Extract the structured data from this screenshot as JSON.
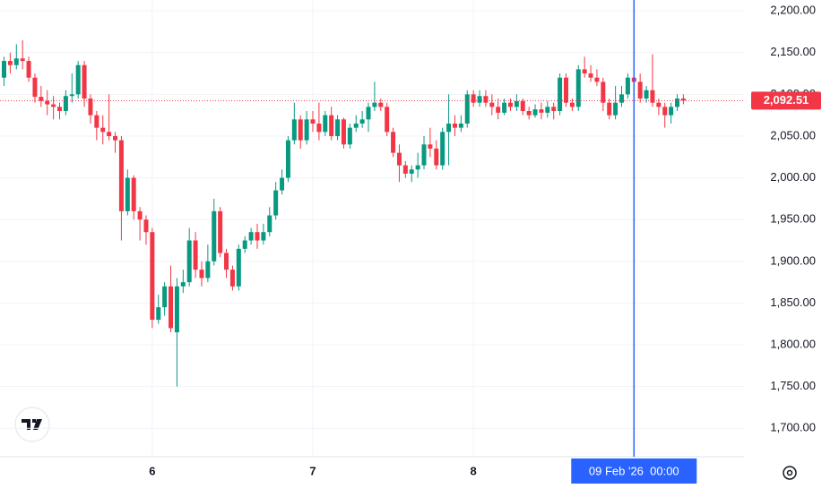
{
  "chart_data": {
    "type": "candlestick",
    "categories": [
      null,
      null,
      null,
      null,
      null,
      null,
      null,
      null,
      null,
      null,
      null,
      null,
      null,
      null,
      null,
      null,
      null,
      null,
      null,
      null,
      null,
      null,
      null,
      null,
      "6",
      null,
      null,
      null,
      null,
      null,
      null,
      null,
      null,
      null,
      null,
      null,
      null,
      null,
      null,
      null,
      null,
      null,
      null,
      null,
      null,
      null,
      null,
      null,
      null,
      null,
      "7",
      null,
      null,
      null,
      null,
      null,
      null,
      null,
      null,
      null,
      null,
      null,
      null,
      null,
      null,
      null,
      null,
      null,
      null,
      null,
      null,
      null,
      null,
      null,
      null,
      null,
      "8",
      null,
      null,
      null,
      null,
      null,
      null,
      null,
      null,
      null,
      null,
      null,
      null,
      null,
      null,
      null,
      null,
      null,
      null,
      null,
      null,
      null,
      null,
      null,
      null,
      null,
      "09 Feb '26  00:00",
      null,
      null,
      null,
      null,
      null,
      null,
      null,
      null
    ],
    "open": [
      2120,
      2140,
      2135,
      2143,
      2140,
      2120,
      2097,
      2092,
      2088,
      2085,
      2080,
      2098,
      2100,
      2135,
      2095,
      2075,
      2060,
      2055,
      2050,
      2045,
      1960,
      2000,
      1960,
      1950,
      1935,
      1830,
      1845,
      1870,
      1815,
      1870,
      1875,
      1925,
      1890,
      1880,
      1900,
      1960,
      1910,
      1890,
      1870,
      1915,
      1925,
      1935,
      1925,
      1935,
      1955,
      1985,
      2000,
      2045,
      2070,
      2045,
      2070,
      2065,
      2055,
      2075,
      2050,
      2070,
      2040,
      2060,
      2065,
      2070,
      2085,
      2090,
      2085,
      2055,
      2030,
      2015,
      2005,
      2010,
      2015,
      2040,
      2035,
      2015,
      2055,
      2065,
      2060,
      2065,
      2100,
      2090,
      2098,
      2090,
      2085,
      2078,
      2090,
      2085,
      2092,
      2080,
      2075,
      2082,
      2078,
      2085,
      2080,
      2120,
      2090,
      2085,
      2130,
      2125,
      2120,
      2115,
      2090,
      2075,
      2090,
      2100,
      2120,
      2115,
      2095,
      2105,
      2090,
      2085,
      2075,
      2085,
      2095
    ],
    "high": [
      2145,
      2150,
      2160,
      2165,
      2145,
      2125,
      2110,
      2105,
      2098,
      2090,
      2105,
      2125,
      2140,
      2140,
      2100,
      2080,
      2075,
      2100,
      2055,
      2050,
      2010,
      2003,
      1965,
      1955,
      1940,
      1860,
      1875,
      1895,
      1880,
      1890,
      1940,
      1935,
      1900,
      1920,
      1975,
      1965,
      1915,
      1895,
      1920,
      1930,
      1940,
      1945,
      1945,
      1965,
      1995,
      2010,
      2050,
      2090,
      2075,
      2080,
      2080,
      2090,
      2080,
      2085,
      2075,
      2072,
      2065,
      2075,
      2080,
      2090,
      2115,
      2095,
      2090,
      2060,
      2040,
      2020,
      2015,
      2030,
      2050,
      2060,
      2045,
      2060,
      2100,
      2075,
      2075,
      2105,
      2105,
      2105,
      2105,
      2100,
      2095,
      2095,
      2095,
      2100,
      2095,
      2085,
      2088,
      2090,
      2092,
      2090,
      2125,
      2125,
      2095,
      2135,
      2145,
      2135,
      2130,
      2120,
      2095,
      2110,
      2110,
      2125,
      2125,
      2125,
      2110,
      2148,
      2095,
      2090,
      2090,
      2100,
      2100
    ],
    "low": [
      2110,
      2125,
      2130,
      2130,
      2115,
      2090,
      2085,
      2075,
      2070,
      2070,
      2075,
      2090,
      2095,
      2085,
      2065,
      2045,
      2040,
      2045,
      2030,
      1925,
      1955,
      1950,
      1925,
      1920,
      1820,
      1825,
      1835,
      1815,
      1750,
      1862,
      1870,
      1880,
      1870,
      1875,
      1895,
      1905,
      1880,
      1865,
      1865,
      1910,
      1920,
      1915,
      1920,
      1930,
      1950,
      1980,
      1995,
      2040,
      2035,
      2040,
      2055,
      2045,
      2050,
      2045,
      2045,
      2035,
      2035,
      2055,
      2060,
      2055,
      2080,
      2080,
      2050,
      2025,
      1995,
      2000,
      1995,
      2000,
      2010,
      2025,
      2010,
      2010,
      2015,
      2050,
      2055,
      2060,
      2085,
      2085,
      2085,
      2075,
      2070,
      2075,
      2080,
      2080,
      2075,
      2070,
      2072,
      2070,
      2072,
      2070,
      2075,
      2085,
      2080,
      2080,
      2120,
      2115,
      2110,
      2080,
      2070,
      2070,
      2085,
      2095,
      2105,
      2090,
      2090,
      2085,
      2075,
      2060,
      2065,
      2080,
      2088
    ],
    "close": [
      2140,
      2135,
      2143,
      2140,
      2120,
      2097,
      2092,
      2088,
      2085,
      2080,
      2098,
      2100,
      2135,
      2095,
      2075,
      2060,
      2055,
      2050,
      2045,
      1960,
      2000,
      1960,
      1950,
      1935,
      1830,
      1845,
      1870,
      1820,
      1870,
      1875,
      1925,
      1890,
      1880,
      1900,
      1960,
      1910,
      1890,
      1870,
      1915,
      1925,
      1935,
      1925,
      1935,
      1955,
      1985,
      2000,
      2045,
      2070,
      2045,
      2070,
      2065,
      2055,
      2075,
      2050,
      2070,
      2040,
      2060,
      2065,
      2070,
      2085,
      2090,
      2085,
      2055,
      2030,
      2015,
      2005,
      2010,
      2015,
      2040,
      2035,
      2015,
      2055,
      2065,
      2060,
      2065,
      2100,
      2090,
      2098,
      2090,
      2085,
      2078,
      2090,
      2085,
      2092,
      2080,
      2075,
      2082,
      2078,
      2085,
      2080,
      2120,
      2090,
      2085,
      2130,
      2125,
      2120,
      2115,
      2090,
      2075,
      2090,
      2100,
      2120,
      2115,
      2095,
      2105,
      2090,
      2085,
      2075,
      2085,
      2095,
      2092.51
    ],
    "up_color": "#089981",
    "down_color": "#f23645",
    "last_price": {
      "value": 2092.51,
      "label": "2,092.51"
    },
    "ylim": [
      1666,
      2213
    ],
    "yticks": [
      {
        "value": 1700,
        "label": "1,700.00"
      },
      {
        "value": 1750,
        "label": "1,750.00"
      },
      {
        "value": 1800,
        "label": "1,800.00"
      },
      {
        "value": 1850,
        "label": "1,850.00"
      },
      {
        "value": 1900,
        "label": "1,900.00"
      },
      {
        "value": 1950,
        "label": "1,950.00"
      },
      {
        "value": 2000,
        "label": "2,000.00"
      },
      {
        "value": 2050,
        "label": "2,050.00"
      },
      {
        "value": 2100,
        "label": "2,100.00"
      },
      {
        "value": 2150,
        "label": "2,150.00"
      },
      {
        "value": 2200,
        "label": "2,200.00"
      }
    ],
    "grid": true
  }
}
